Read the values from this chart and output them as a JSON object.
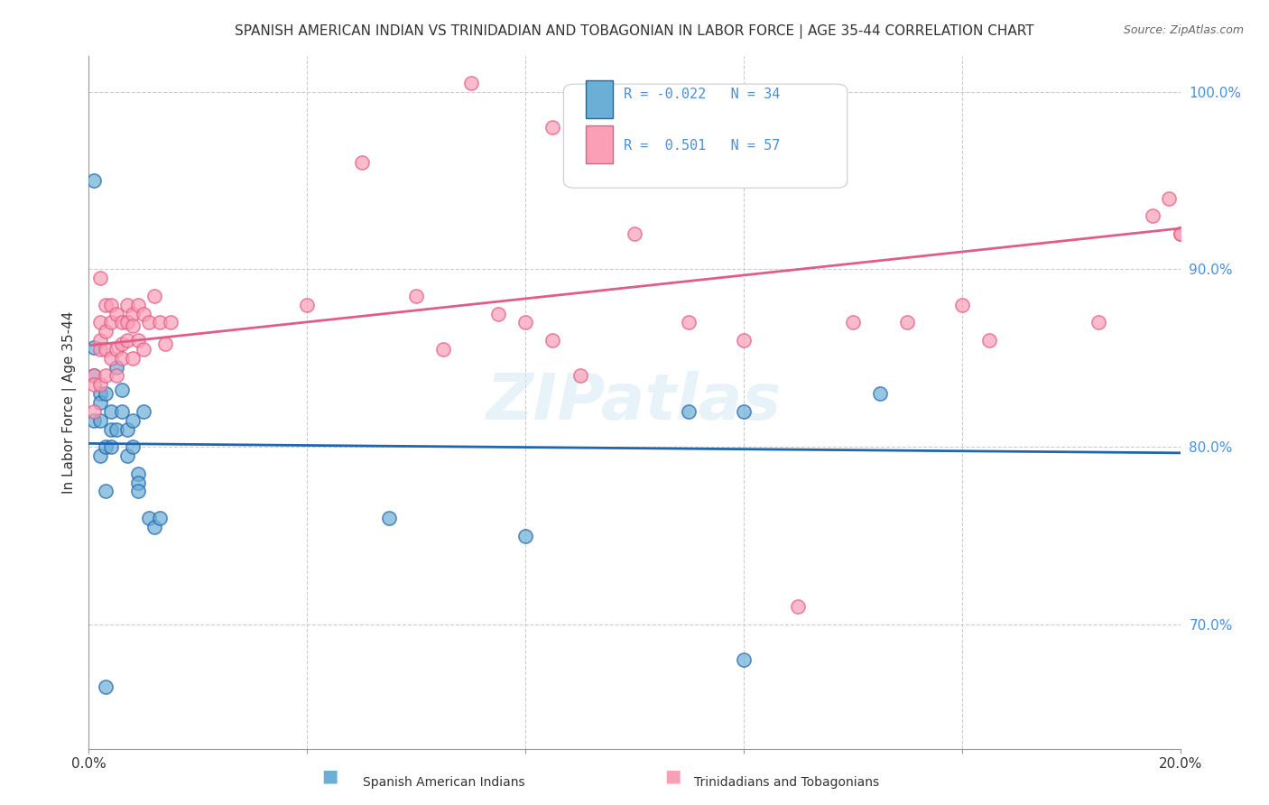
{
  "title": "SPANISH AMERICAN INDIAN VS TRINIDADIAN AND TOBAGONIAN IN LABOR FORCE | AGE 35-44 CORRELATION CHART",
  "source": "Source: ZipAtlas.com",
  "xlabel_bottom": "",
  "ylabel": "In Labor Force | Age 35-44",
  "x_min": 0.0,
  "x_max": 0.2,
  "y_min": 0.63,
  "y_max": 1.02,
  "x_ticks": [
    0.0,
    0.04,
    0.08,
    0.12,
    0.16,
    0.2
  ],
  "x_tick_labels": [
    "0.0%",
    "",
    "",
    "",
    "",
    "20.0%"
  ],
  "y_ticks_right": [
    0.7,
    0.8,
    0.9,
    1.0
  ],
  "y_tick_labels_right": [
    "70.0%",
    "80.0%",
    "90.0%",
    "100.0%"
  ],
  "watermark": "ZIPatlas",
  "legend_r1": "R = -0.022",
  "legend_n1": "N = 34",
  "legend_r2": "R =  0.501",
  "legend_n2": "N = 57",
  "color_blue": "#6baed6",
  "color_pink": "#fa9fb5",
  "color_blue_line": "#2166ac",
  "color_pink_line": "#e05c8a",
  "blue_r": -0.022,
  "pink_r": 0.501,
  "blue_x": [
    0.001,
    0.001,
    0.001,
    0.002,
    0.002,
    0.002,
    0.002,
    0.003,
    0.003,
    0.003,
    0.004,
    0.004,
    0.004,
    0.005,
    0.005,
    0.006,
    0.006,
    0.007,
    0.007,
    0.008,
    0.008,
    0.009,
    0.009,
    0.009,
    0.01,
    0.011,
    0.012,
    0.013,
    0.055,
    0.08,
    0.11,
    0.12,
    0.12,
    0.145
  ],
  "blue_y": [
    0.856,
    0.84,
    0.815,
    0.83,
    0.825,
    0.815,
    0.795,
    0.83,
    0.8,
    0.775,
    0.82,
    0.8,
    0.81,
    0.81,
    0.845,
    0.832,
    0.82,
    0.795,
    0.81,
    0.815,
    0.8,
    0.785,
    0.78,
    0.775,
    0.82,
    0.76,
    0.755,
    0.76,
    0.76,
    0.75,
    0.82,
    0.82,
    0.68,
    0.83
  ],
  "blue_special": [
    [
      0.001,
      0.95
    ],
    [
      0.003,
      0.665
    ]
  ],
  "pink_x": [
    0.001,
    0.001,
    0.001,
    0.002,
    0.002,
    0.002,
    0.002,
    0.002,
    0.003,
    0.003,
    0.003,
    0.003,
    0.004,
    0.004,
    0.004,
    0.005,
    0.005,
    0.005,
    0.006,
    0.006,
    0.006,
    0.007,
    0.007,
    0.007,
    0.008,
    0.008,
    0.008,
    0.009,
    0.009,
    0.01,
    0.01,
    0.011,
    0.012,
    0.013,
    0.014,
    0.015,
    0.04,
    0.05,
    0.06,
    0.065,
    0.075,
    0.08,
    0.085,
    0.09,
    0.1,
    0.11,
    0.12,
    0.13,
    0.14,
    0.15,
    0.16,
    0.165,
    0.185,
    0.195,
    0.198,
    0.2,
    0.2
  ],
  "pink_y": [
    0.84,
    0.835,
    0.82,
    0.895,
    0.87,
    0.86,
    0.855,
    0.835,
    0.88,
    0.865,
    0.855,
    0.84,
    0.88,
    0.87,
    0.85,
    0.875,
    0.855,
    0.84,
    0.87,
    0.858,
    0.85,
    0.88,
    0.87,
    0.86,
    0.875,
    0.868,
    0.85,
    0.88,
    0.86,
    0.875,
    0.855,
    0.87,
    0.885,
    0.87,
    0.858,
    0.87,
    0.88,
    0.96,
    0.885,
    0.855,
    0.875,
    0.87,
    0.86,
    0.84,
    0.92,
    0.87,
    0.86,
    0.71,
    0.87,
    0.87,
    0.88,
    0.86,
    0.87,
    0.93,
    0.94,
    0.92,
    0.92
  ],
  "pink_special_high": [
    [
      0.07,
      1.005
    ],
    [
      0.085,
      0.98
    ],
    [
      0.11,
      0.99
    ]
  ]
}
